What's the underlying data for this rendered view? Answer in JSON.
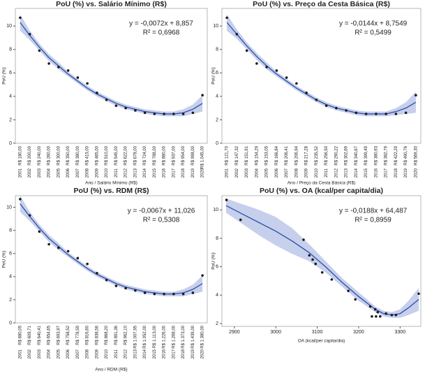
{
  "chart_data": [
    {
      "type": "scatter",
      "title": "PoU (%) vs. Salário Mínimo (R$)",
      "x_label": "Ano / Salário Mínimo (R$)",
      "y_label": "PoU (%)",
      "annotations": [
        "y = -0,0072x + 8,857",
        "R² = 0,6968"
      ],
      "categories": [
        "2001",
        "2002",
        "2003",
        "2004",
        "2005",
        "2006",
        "2007",
        "2008",
        "2009",
        "2010",
        "2011",
        "2012",
        "2013",
        "2014",
        "2015",
        "2016",
        "2017",
        "2018",
        "2019",
        "2020"
      ],
      "category_labels": [
        "R$ 180,00",
        "R$ 200,00",
        "R$ 240,00",
        "R$ 260,00",
        "R$ 300,00",
        "R$ 350,00",
        "R$ 380,00",
        "R$ 415,00",
        "R$ 465,00",
        "R$ 510,00",
        "R$ 545,00",
        "R$ 622,00",
        "R$ 678,00",
        "R$ 724,00",
        "R$ 788,00",
        "R$ 880,00",
        "R$ 937,00",
        "R$ 954,00",
        "R$ 998,00",
        "R$ 1.045,00"
      ],
      "values": [
        10.7,
        9.3,
        7.9,
        6.8,
        6.5,
        6.2,
        5.6,
        5.1,
        4.3,
        3.7,
        3.2,
        3.0,
        2.8,
        2.6,
        2.5,
        2.5,
        2.5,
        2.5,
        2.6,
        4.1
      ],
      "fit": [
        10.3,
        9.2,
        8.2,
        7.3,
        6.6,
        5.9,
        5.3,
        4.7,
        4.2,
        3.8,
        3.4,
        3.1,
        2.9,
        2.7,
        2.6,
        2.5,
        2.5,
        2.6,
        2.9,
        3.4
      ],
      "ci_lower": [
        9.6,
        8.8,
        7.9,
        7.0,
        6.3,
        5.7,
        5.1,
        4.5,
        4.0,
        3.6,
        3.2,
        2.9,
        2.7,
        2.5,
        2.4,
        2.3,
        2.3,
        2.3,
        2.5,
        2.7
      ],
      "ci_upper": [
        11.0,
        9.6,
        8.5,
        7.6,
        6.9,
        6.1,
        5.5,
        4.9,
        4.4,
        4.0,
        3.6,
        3.3,
        3.1,
        2.9,
        2.8,
        2.7,
        2.7,
        2.9,
        3.3,
        4.1
      ],
      "ylim": [
        0,
        11.5
      ],
      "yticks": [
        0,
        2,
        4,
        6,
        8,
        10
      ],
      "point_color": "#1a1a1a",
      "line_color": "#2c4ea8",
      "band_color": "#b3bfe6"
    },
    {
      "type": "scatter",
      "title": "PoU (%) vs. Preço da Cesta Básica (R$)",
      "x_label": "Ano / Preço da Cesta Básica (R$)",
      "y_label": "PoU (%)",
      "annotations": [
        "y = -0,0144x + 8,7549",
        "R² = 0,5499"
      ],
      "categories": [
        "2001",
        "2002",
        "2003",
        "2004",
        "2005",
        "2006",
        "2007",
        "2008",
        "2009",
        "2010",
        "2011",
        "2012",
        "2013",
        "2014",
        "2015",
        "2016",
        "2017",
        "2018",
        "2019",
        "2020"
      ],
      "category_labels": [
        "R$ 121,70",
        "R$ 147,32",
        "R$ 151,91",
        "R$ 154,29",
        "R$ 153,05",
        "R$ 166,84",
        "R$ 206,41",
        "R$ 206,94",
        "R$ 217,28",
        "R$ 235,52",
        "R$ 256,50",
        "R$ 290,22",
        "R$ 302,69",
        "R$ 340,67",
        "R$ 399,49",
        "R$ 380,93",
        "R$ 382,79",
        "R$ 422,29",
        "R$ 490,76",
        "R$ 569,30"
      ],
      "values": [
        10.7,
        9.3,
        7.9,
        6.8,
        6.5,
        6.2,
        5.6,
        5.1,
        4.3,
        3.7,
        3.2,
        3.0,
        2.8,
        2.6,
        2.5,
        2.5,
        2.5,
        2.5,
        2.6,
        4.1
      ],
      "fit": [
        10.3,
        9.3,
        8.3,
        7.4,
        6.6,
        5.9,
        5.3,
        4.7,
        4.2,
        3.7,
        3.3,
        3.0,
        2.8,
        2.6,
        2.5,
        2.5,
        2.5,
        2.7,
        3.0,
        3.5
      ],
      "ci_lower": [
        9.6,
        8.9,
        8.0,
        7.1,
        6.3,
        5.7,
        5.1,
        4.5,
        4.0,
        3.5,
        3.1,
        2.8,
        2.6,
        2.4,
        2.3,
        2.3,
        2.3,
        2.4,
        2.5,
        2.6
      ],
      "ci_upper": [
        11.0,
        9.7,
        8.6,
        7.7,
        6.9,
        6.1,
        5.5,
        4.9,
        4.4,
        3.9,
        3.5,
        3.2,
        3.0,
        2.8,
        2.7,
        2.7,
        2.7,
        3.0,
        3.5,
        4.4
      ],
      "ylim": [
        0,
        11.5
      ],
      "yticks": [
        0,
        2,
        4,
        6,
        8,
        10
      ],
      "point_color": "#1a1a1a",
      "line_color": "#2c4ea8",
      "band_color": "#b3bfe6"
    },
    {
      "type": "scatter",
      "title": "PoU (%) vs. RDM (R$)",
      "x_label": "Ano / RDM (R$)",
      "y_label": "PoU (%)",
      "annotations": [
        "y = -0,0067x + 11,026",
        "R² = 0,5308"
      ],
      "categories": [
        "2001",
        "2002",
        "2003",
        "2004",
        "2005",
        "2006",
        "2007",
        "2008",
        "2009",
        "2010",
        "2011",
        "2012",
        "2013",
        "2014",
        "2015",
        "2016",
        "2017",
        "2018",
        "2019",
        "2020"
      ],
      "category_labels": [
        "R$ 680,05",
        "R$ 609,71",
        "R$ 640,41",
        "R$ 654,65",
        "R$ 693,97",
        "R$ 758,52",
        "R$ 778,59",
        "R$ 816,60",
        "R$ 838,56",
        "R$ 868,20",
        "R$ 891,36",
        "R$ 962,10",
        "R$ 1.007,95",
        "R$ 1.052,00",
        "R$ 1.113,00",
        "R$ 1.226,00",
        "R$ 1.268,00",
        "R$ 1.373,00",
        "R$ 1.439,00",
        "R$ 1.380,00"
      ],
      "values": [
        10.7,
        9.3,
        7.9,
        6.8,
        6.5,
        6.2,
        5.6,
        5.1,
        4.3,
        3.7,
        3.2,
        3.0,
        2.8,
        2.6,
        2.5,
        2.5,
        2.5,
        2.5,
        2.6,
        4.1
      ],
      "fit": [
        10.3,
        9.2,
        8.2,
        7.3,
        6.6,
        5.9,
        5.3,
        4.7,
        4.2,
        3.8,
        3.4,
        3.1,
        2.9,
        2.7,
        2.6,
        2.5,
        2.5,
        2.6,
        2.9,
        3.4
      ],
      "ci_lower": [
        9.6,
        8.8,
        7.9,
        7.0,
        6.3,
        5.7,
        5.1,
        4.5,
        4.0,
        3.6,
        3.2,
        2.9,
        2.7,
        2.5,
        2.4,
        2.3,
        2.3,
        2.3,
        2.5,
        2.7
      ],
      "ci_upper": [
        11.0,
        9.6,
        8.5,
        7.6,
        6.9,
        6.1,
        5.5,
        4.9,
        4.4,
        4.0,
        3.6,
        3.3,
        3.1,
        2.9,
        2.8,
        2.7,
        2.7,
        2.9,
        3.3,
        4.1
      ],
      "ylim": [
        0,
        11
      ],
      "yticks": [
        0,
        2,
        4,
        6,
        8,
        10
      ],
      "point_color": "#1a1a1a",
      "line_color": "#2c4ea8",
      "band_color": "#b3bfe6"
    },
    {
      "type": "scatter",
      "title": "PoU (%) vs. OA (kcal/per capita/dia)",
      "x_label": "OA (kcal/per capita/dia)",
      "y_label": "PoU (%)",
      "annotations": [
        "y = -0,0188x + 64,487",
        "R² = 0,8959"
      ],
      "x": [
        2881,
        2915,
        3067,
        3081,
        3089,
        3096,
        3112,
        3135,
        3175,
        3192,
        3228,
        3240,
        3246,
        3232,
        3242,
        3252,
        3266,
        3280,
        3290,
        3345
      ],
      "values": [
        10.7,
        9.3,
        7.9,
        6.8,
        6.5,
        6.2,
        5.6,
        5.1,
        4.3,
        3.7,
        3.2,
        3.0,
        2.8,
        2.5,
        2.5,
        2.5,
        2.7,
        2.6,
        2.6,
        4.1
      ],
      "fit_x": [
        2880,
        2920,
        2960,
        3000,
        3040,
        3080,
        3120,
        3160,
        3200,
        3240,
        3260,
        3280,
        3300,
        3320,
        3345
      ],
      "fit": [
        10.3,
        9.7,
        9.1,
        8.5,
        7.8,
        7.0,
        6.0,
        4.9,
        3.9,
        3.0,
        2.7,
        2.6,
        2.7,
        3.1,
        3.7
      ],
      "ci_lower": [
        9.8,
        9.0,
        8.2,
        7.5,
        6.9,
        6.4,
        5.6,
        4.6,
        3.6,
        2.8,
        2.5,
        2.4,
        2.4,
        2.6,
        2.9
      ],
      "ci_upper": [
        10.8,
        10.4,
        10.0,
        9.5,
        8.7,
        7.6,
        6.4,
        5.2,
        4.2,
        3.2,
        2.9,
        2.8,
        3.0,
        3.6,
        4.5
      ],
      "xlim": [
        2870,
        3350
      ],
      "xticks": [
        2900,
        3000,
        3100,
        3200,
        3300
      ],
      "ylim": [
        1.8,
        11
      ],
      "yticks": [
        2,
        4,
        6,
        8,
        10
      ],
      "point_color": "#1a1a1a",
      "line_color": "#2c4ea8",
      "band_color": "#b3bfe6"
    }
  ]
}
